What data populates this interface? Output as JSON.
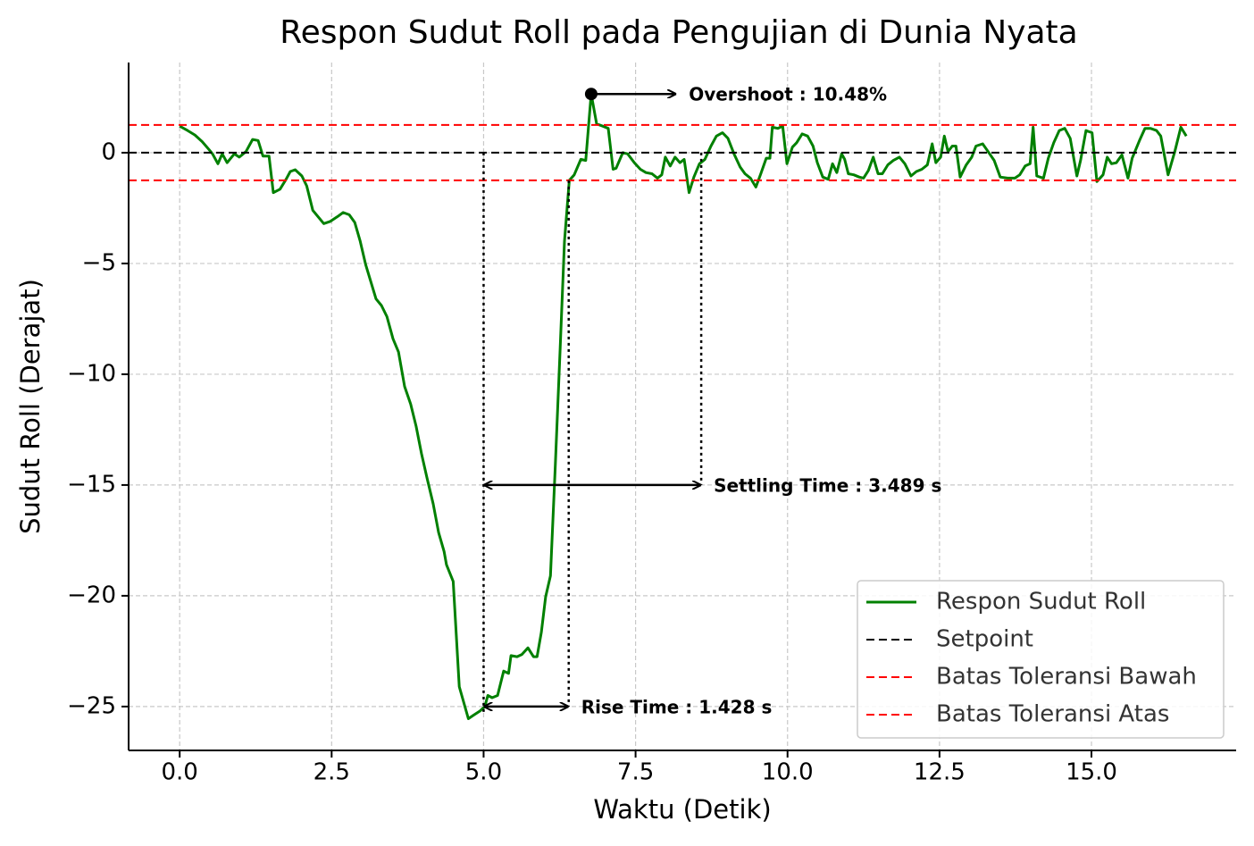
{
  "chart_data": {
    "type": "line",
    "title": "Respon Sudut Roll pada Pengujian di Dunia Nyata",
    "x_label": "Waktu (Detik)",
    "y_label": "Sudut Roll (Derajat)",
    "xlim": [
      -0.84,
      17.38
    ],
    "ylim": [
      -26.98,
      4.07
    ],
    "xticks": [
      {
        "value": 0,
        "label": "0.0"
      },
      2.5,
      {
        "value": 5,
        "label": "5.0"
      },
      7.5,
      {
        "value": 10,
        "label": "10.0"
      },
      12.5,
      {
        "value": 15,
        "label": "15.0"
      }
    ],
    "yticks": [
      {
        "value": 0,
        "label": "0"
      },
      {
        "value": -5,
        "label": "−5"
      },
      {
        "value": -10,
        "label": "−10"
      },
      {
        "value": -15,
        "label": "−15"
      },
      {
        "value": -20,
        "label": "−20"
      },
      {
        "value": -25,
        "label": "−25"
      }
    ],
    "grid": true,
    "legend": "lower right",
    "x": [
      0,
      0.13,
      0.25,
      0.37,
      0.48,
      0.54,
      0.63,
      0.7,
      0.78,
      0.9,
      0.98,
      1.09,
      1.2,
      1.29,
      1.37,
      1.47,
      1.54,
      1.65,
      1.75,
      1.82,
      1.9,
      2.01,
      2.09,
      2.19,
      2.28,
      2.37,
      2.48,
      2.59,
      2.69,
      2.79,
      2.88,
      2.97,
      3.06,
      3.23,
      3.32,
      3.41,
      3.51,
      3.6,
      3.7,
      3.8,
      3.89,
      3.98,
      4.07,
      4.17,
      4.26,
      4.35,
      4.39,
      4.5,
      4.6,
      4.75,
      4.83,
      4.94,
      5.02,
      5.07,
      5.14,
      5.23,
      5.33,
      5.41,
      5.45,
      5.55,
      5.63,
      5.73,
      5.82,
      5.88,
      5.95,
      6.02,
      6.1,
      6.18,
      6.26,
      6.33,
      6.41,
      6.49,
      6.6,
      6.68,
      6.77,
      6.86,
      6.96,
      7.05,
      7.13,
      7.18,
      7.29,
      7.37,
      7.48,
      7.58,
      7.67,
      7.77,
      7.86,
      7.93,
      7.99,
      8.07,
      8.15,
      8.23,
      8.3,
      8.38,
      8.46,
      8.55,
      8.64,
      8.74,
      8.83,
      8.93,
      9.02,
      9.12,
      9.22,
      9.3,
      9.39,
      9.48,
      9.56,
      9.65,
      9.71,
      9.75,
      9.84,
      9.92,
      9.99,
      10.08,
      10.15,
      10.24,
      10.33,
      10.42,
      10.49,
      10.58,
      10.67,
      10.74,
      10.81,
      10.89,
      10.94,
      11.0,
      11.09,
      11.18,
      11.25,
      11.33,
      11.41,
      11.49,
      11.56,
      11.65,
      11.74,
      11.84,
      11.93,
      12.03,
      12.12,
      12.21,
      12.3,
      12.38,
      12.44,
      12.52,
      12.58,
      12.64,
      12.71,
      12.77,
      12.84,
      12.94,
      13.03,
      13.1,
      13.21,
      13.3,
      13.4,
      13.5,
      13.62,
      13.74,
      13.82,
      13.91,
      13.99,
      14.04,
      14.1,
      14.21,
      14.29,
      14.38,
      14.47,
      14.56,
      14.65,
      14.76,
      14.82,
      14.91,
      15.01,
      15.09,
      15.19,
      15.26,
      15.33,
      15.41,
      15.5,
      15.6,
      15.67,
      15.79,
      15.88,
      15.97,
      16.07,
      16.14,
      16.26,
      16.37,
      16.47,
      16.56
    ],
    "series": [
      {
        "name": "Respon Sudut Roll",
        "color": "#008000",
        "style": "solid",
        "values": [
          1.2,
          1.0,
          0.8,
          0.5,
          0.15,
          -0.05,
          -0.5,
          -0.05,
          -0.45,
          -0.05,
          -0.2,
          0.05,
          0.6,
          0.55,
          -0.15,
          -0.15,
          -1.8,
          -1.65,
          -1.2,
          -0.85,
          -0.77,
          -1.05,
          -1.5,
          -2.6,
          -2.9,
          -3.2,
          -3.1,
          -2.9,
          -2.7,
          -2.8,
          -3.15,
          -4.0,
          -5.05,
          -6.6,
          -6.9,
          -7.4,
          -8.4,
          -9.0,
          -10.55,
          -11.35,
          -12.35,
          -13.6,
          -14.7,
          -15.85,
          -17.15,
          -18.0,
          -18.6,
          -19.35,
          -24.1,
          -25.55,
          -25.4,
          -25.2,
          -25.0,
          -24.5,
          -24.6,
          -24.5,
          -23.4,
          -23.5,
          -22.7,
          -22.75,
          -22.65,
          -22.35,
          -22.75,
          -22.75,
          -21.65,
          -20.05,
          -19.1,
          -14.05,
          -8.8,
          -4.0,
          -1.25,
          -1.0,
          -0.3,
          -0.35,
          2.65,
          1.3,
          1.2,
          1.1,
          -0.75,
          -0.7,
          0,
          -0.05,
          -0.45,
          -0.75,
          -0.9,
          -0.95,
          -1.15,
          -1.0,
          -0.2,
          -0.6,
          -0.2,
          -0.45,
          -0.3,
          -1.8,
          -1.1,
          -0.5,
          -0.3,
          0.3,
          0.75,
          0.9,
          0.65,
          -0.05,
          -0.65,
          -0.95,
          -1.15,
          -1.55,
          -0.95,
          -0.25,
          -0.25,
          1.15,
          1.1,
          1.2,
          -0.5,
          0.25,
          0.45,
          0.85,
          0.75,
          0.3,
          -0.45,
          -1.1,
          -1.2,
          -0.5,
          -0.9,
          -0.05,
          -0.3,
          -0.95,
          -1.0,
          -1.1,
          -1.15,
          -0.8,
          -0.2,
          -0.95,
          -0.95,
          -0.55,
          -0.35,
          -0.2,
          -0.5,
          -1.05,
          -0.85,
          -0.75,
          -0.55,
          0.4,
          -0.45,
          -0.2,
          0.75,
          0.05,
          0.3,
          0.3,
          -1.1,
          -0.55,
          -0.2,
          0.3,
          0.4,
          0.05,
          -0.35,
          -1.1,
          -1.15,
          -1.15,
          -1.0,
          -0.6,
          -0.5,
          1.15,
          -1.05,
          -1.15,
          -0.25,
          0.45,
          1.0,
          1.1,
          0.65,
          -1.05,
          -0.35,
          1.0,
          0.9,
          -1.3,
          -1.0,
          -0.2,
          -0.5,
          -0.45,
          -0.1,
          -1.15,
          -0.25,
          0.55,
          1.1,
          1.1,
          1.0,
          0.75,
          -1.0,
          0.05,
          1.15,
          0.75
        ]
      },
      {
        "name": "Setpoint",
        "color": "#000000",
        "style": "dashed",
        "hline": 0
      },
      {
        "name": "Batas Toleransi Bawah",
        "color": "#ff0000",
        "style": "dashed",
        "hline": -1.25
      },
      {
        "name": "Batas Toleransi Atas",
        "color": "#ff0000",
        "style": "dashed",
        "hline": 1.25
      }
    ],
    "annotations": [
      {
        "text": "Overshoot : 10.48%",
        "x": [
          6.77,
          8.17
        ],
        "y": 2.65
      },
      {
        "text": "Settling Time : 3.489 s",
        "x": [
          5.0,
          8.58
        ],
        "y": -15
      },
      {
        "text": "Rise Time : 1.428 s",
        "x": [
          5.0,
          6.4
        ],
        "y": -25
      }
    ]
  }
}
